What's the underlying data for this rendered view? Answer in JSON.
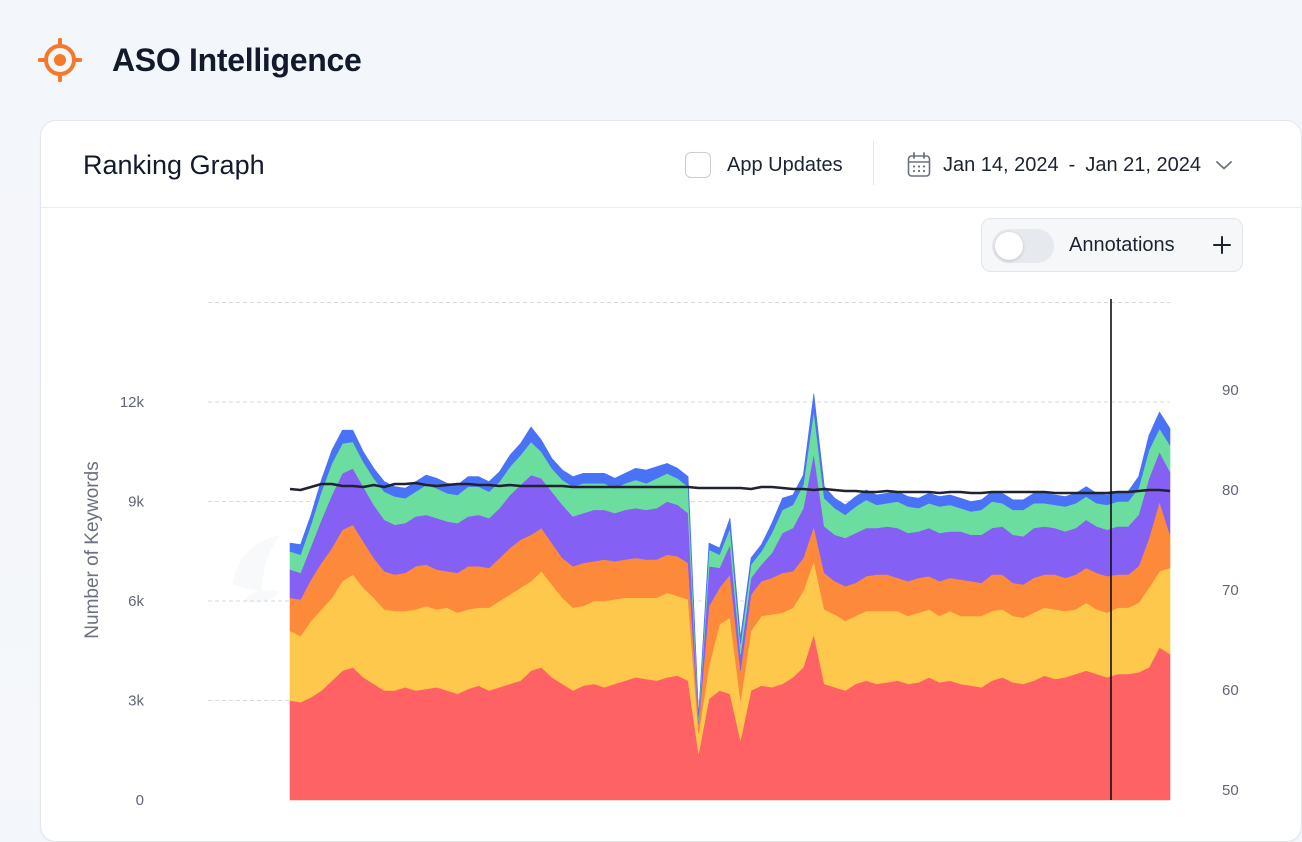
{
  "app": {
    "title": "ASO Intelligence",
    "logo_icon": "target-icon",
    "brand_color": "#f5792a"
  },
  "card": {
    "title": "Ranking Graph",
    "app_updates_label": "App Updates",
    "app_updates_checked": false,
    "date_start": "Jan 14, 2024",
    "date_separator": "-",
    "date_end": "Jan 21, 2024",
    "annotations_label": "Annotations",
    "annotations_enabled": false
  },
  "chart_data": {
    "type": "area",
    "stacked": true,
    "xlabel": "",
    "ylabel": "Number of Keywords",
    "yticks": [
      0,
      3000,
      6000,
      9000,
      12000
    ],
    "ytick_labels": [
      "0",
      "3k",
      "6k",
      "9k",
      "12k"
    ],
    "ylim": [
      0,
      15000
    ],
    "y2ticks": [
      50,
      60,
      70,
      80,
      90
    ],
    "y2lim": [
      50,
      100
    ],
    "grid": true,
    "colors": [
      "#fe6264",
      "#fdc84b",
      "#fd8a3a",
      "#8460f5",
      "#6bdd9f",
      "#4a72f7"
    ],
    "line_color": "#1f2330",
    "series": [
      {
        "values": [
          3000,
          2950,
          3100,
          3300,
          3600,
          3900,
          4000,
          3700,
          3500,
          3300,
          3300,
          3400,
          3300,
          3350,
          3400,
          3300,
          3200,
          3350,
          3450,
          3300,
          3400,
          3500,
          3600,
          3900,
          4000,
          3700,
          3500,
          3300,
          3450,
          3500,
          3400,
          3500,
          3600,
          3700,
          3650,
          3600,
          3700,
          3750,
          3600,
          1400,
          3050,
          3300,
          3200,
          1800,
          3300,
          3450,
          3400,
          3500,
          3700,
          4000,
          5000,
          3500,
          3400,
          3300,
          3500,
          3600,
          3500,
          3550,
          3600,
          3500,
          3550,
          3700,
          3550,
          3600,
          3500,
          3450,
          3400,
          3600,
          3700,
          3550,
          3500,
          3600,
          3750,
          3650,
          3700,
          3800,
          3900,
          3800,
          3700,
          3800,
          3800,
          3850,
          4000,
          4600,
          4400
        ]
      },
      {
        "values": [
          2100,
          2000,
          2300,
          2450,
          2500,
          2700,
          2800,
          2700,
          2600,
          2450,
          2400,
          2300,
          2450,
          2500,
          2350,
          2500,
          2450,
          2400,
          2350,
          2500,
          2600,
          2700,
          2800,
          2700,
          2900,
          2800,
          2600,
          2500,
          2400,
          2500,
          2600,
          2550,
          2500,
          2400,
          2450,
          2500,
          2550,
          2400,
          2450,
          600,
          1000,
          2000,
          2300,
          1200,
          1800,
          2100,
          2200,
          2150,
          2100,
          2300,
          2200,
          2250,
          2200,
          2100,
          2050,
          2100,
          2200,
          2150,
          2100,
          2050,
          2100,
          2050,
          2000,
          2100,
          2050,
          2100,
          2150,
          2100,
          2050,
          2000,
          2000,
          2050,
          2050,
          2100,
          2000,
          1950,
          2050,
          1950,
          1950,
          2000,
          2000,
          2100,
          2400,
          2300,
          2600
        ]
      },
      {
        "values": [
          1000,
          1100,
          1250,
          1400,
          1500,
          1550,
          1500,
          1400,
          1200,
          1150,
          1100,
          1150,
          1300,
          1250,
          1200,
          1100,
          1200,
          1300,
          1250,
          1200,
          1300,
          1400,
          1450,
          1400,
          1300,
          1250,
          1200,
          1250,
          1300,
          1200,
          1250,
          1150,
          1150,
          1200,
          1150,
          1150,
          1150,
          1200,
          1100,
          300,
          1800,
          1100,
          1300,
          900,
          1100,
          1050,
          1100,
          1200,
          1100,
          1000,
          1050,
          1100,
          1000,
          1050,
          1000,
          1050,
          1100,
          1100,
          1000,
          1050,
          1050,
          1000,
          1050,
          1000,
          1100,
          1050,
          1000,
          1100,
          1050,
          1000,
          1000,
          1050,
          1000,
          1050,
          1000,
          1050,
          1050,
          1100,
          1100,
          1000,
          1000,
          1100,
          1500,
          2100,
          1000
        ]
      },
      {
        "values": [
          850,
          800,
          1000,
          1300,
          1600,
          1700,
          1700,
          1650,
          1600,
          1550,
          1500,
          1500,
          1500,
          1500,
          1550,
          1500,
          1500,
          1500,
          1550,
          1500,
          1500,
          1600,
          1650,
          1800,
          1500,
          1550,
          1600,
          1500,
          1500,
          1550,
          1500,
          1450,
          1500,
          1500,
          1500,
          1550,
          1600,
          1550,
          1500,
          100,
          1200,
          600,
          900,
          500,
          500,
          500,
          750,
          1200,
          1300,
          1500,
          2200,
          1400,
          1400,
          1450,
          1500,
          1450,
          1400,
          1450,
          1500,
          1450,
          1400,
          1450,
          1450,
          1400,
          1450,
          1400,
          1450,
          1400,
          1450,
          1450,
          1450,
          1500,
          1450,
          1400,
          1400,
          1400,
          1450,
          1400,
          1400,
          1450,
          1450,
          1550,
          1800,
          1500,
          1900
        ]
      },
      {
        "values": [
          550,
          550,
          650,
          850,
          950,
          900,
          800,
          750,
          800,
          850,
          850,
          750,
          750,
          900,
          900,
          850,
          850,
          900,
          850,
          800,
          800,
          850,
          900,
          1000,
          800,
          700,
          750,
          900,
          900,
          800,
          800,
          750,
          800,
          850,
          800,
          900,
          850,
          800,
          800,
          100,
          500,
          400,
          500,
          300,
          400,
          400,
          600,
          700,
          700,
          700,
          1300,
          850,
          800,
          700,
          800,
          850,
          700,
          700,
          800,
          800,
          700,
          750,
          800,
          800,
          700,
          700,
          750,
          800,
          700,
          750,
          800,
          750,
          700,
          700,
          750,
          750,
          700,
          700,
          750,
          750,
          750,
          800,
          850,
          700,
          800
        ]
      },
      {
        "values": [
          250,
          300,
          300,
          350,
          400,
          400,
          350,
          300,
          300,
          300,
          300,
          300,
          300,
          300,
          300,
          300,
          300,
          300,
          300,
          300,
          300,
          350,
          350,
          450,
          350,
          300,
          300,
          300,
          300,
          300,
          300,
          300,
          300,
          350,
          400,
          350,
          300,
          300,
          300,
          50,
          200,
          200,
          300,
          200,
          200,
          200,
          300,
          350,
          300,
          300,
          500,
          350,
          300,
          300,
          300,
          300,
          300,
          300,
          300,
          300,
          300,
          300,
          300,
          300,
          300,
          300,
          300,
          300,
          300,
          300,
          300,
          300,
          300,
          300,
          300,
          300,
          300,
          300,
          300,
          300,
          300,
          350,
          450,
          500,
          500
        ]
      }
    ],
    "line": {
      "values": [
        80.1,
        80.0,
        80.3,
        80.6,
        80.6,
        80.4,
        80.4,
        80.3,
        80.5,
        80.3,
        80.6,
        80.6,
        80.7,
        80.5,
        80.4,
        80.5,
        80.6,
        80.6,
        80.5,
        80.5,
        80.4,
        80.5,
        80.4,
        80.4,
        80.4,
        80.4,
        80.4,
        80.3,
        80.3,
        80.3,
        80.3,
        80.3,
        80.3,
        80.3,
        80.3,
        80.3,
        80.3,
        80.3,
        80.3,
        80.2,
        80.2,
        80.2,
        80.2,
        80.2,
        80.1,
        80.3,
        80.3,
        80.2,
        80.1,
        80.1,
        80.0,
        80.1,
        80.0,
        79.9,
        79.9,
        79.8,
        79.8,
        79.9,
        79.8,
        79.8,
        79.8,
        79.8,
        79.7,
        79.8,
        79.8,
        79.7,
        79.7,
        79.8,
        79.8,
        79.8,
        79.8,
        79.8,
        79.8,
        79.7,
        79.7,
        79.7,
        79.7,
        79.7,
        79.7,
        79.8,
        79.8,
        79.9,
        80.0,
        80.0,
        79.9
      ]
    }
  }
}
